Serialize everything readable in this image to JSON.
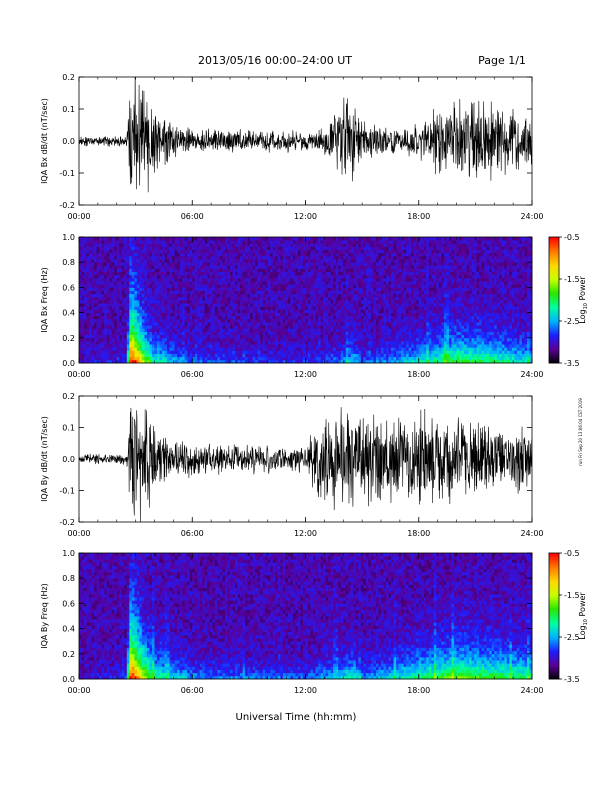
{
  "header": {
    "title": "2013/05/16  00:00–24:00 UT",
    "page": "Page 1/1"
  },
  "footer": {
    "xlabel": "Universal Time (hh:mm)"
  },
  "side_note": "run Fri Sep 20 13:06:04 CST 2019",
  "colorbar": {
    "label_base": "Log",
    "label_sub": "10",
    "label_rest": " Power",
    "ticks": [
      "-0.5",
      "-1.5",
      "-2.5",
      "-3.5"
    ],
    "range": [
      -3.5,
      -0.5
    ],
    "colors": [
      "#000000",
      "#5a0096",
      "#1e1eff",
      "#00b4ff",
      "#00ffa0",
      "#28e600",
      "#c8ff00",
      "#ffd700",
      "#ff7800",
      "#ff0000"
    ]
  },
  "chart_data": [
    {
      "type": "line",
      "ylabel": "IQA Bx dB/dt (nT/sec)",
      "xlim": [
        0,
        24
      ],
      "ylim": [
        -0.2,
        0.2
      ],
      "x_ticks": [
        "00:00",
        "06:00",
        "12:00",
        "18:00",
        "24:00"
      ],
      "y_ticks": [
        "0.2",
        "0.1",
        "0.0",
        "-0.1",
        "-0.2"
      ],
      "series": [
        {
          "envelope_hours": [
            0,
            2.5,
            2.6,
            2.75,
            3.0,
            3.5,
            4.0,
            4.5,
            5.0,
            6.0,
            7.0,
            8.0,
            9.0,
            10.0,
            11.0,
            12.0,
            13.0,
            13.5,
            14.0,
            14.5,
            15.0,
            16.0,
            17.0,
            18.0,
            18.5,
            19.0,
            20.0,
            21.0,
            22.0,
            23.0,
            24.0
          ],
          "envelope_amplitude": [
            0.015,
            0.015,
            0.06,
            0.2,
            0.2,
            0.15,
            0.12,
            0.08,
            0.05,
            0.035,
            0.035,
            0.035,
            0.03,
            0.03,
            0.03,
            0.03,
            0.04,
            0.08,
            0.15,
            0.12,
            0.06,
            0.04,
            0.04,
            0.05,
            0.08,
            0.1,
            0.12,
            0.12,
            0.1,
            0.09,
            0.08
          ]
        }
      ]
    },
    {
      "type": "heatmap",
      "ylabel": "IQA Bx Freq (Hz)",
      "xlim": [
        0,
        24
      ],
      "ylim": [
        0,
        1.0
      ],
      "x_ticks": [
        "00:00",
        "06:00",
        "12:00",
        "18:00",
        "24:00"
      ],
      "y_ticks": [
        "1.0",
        "0.8",
        "0.6",
        "0.4",
        "0.2",
        "0.0"
      ],
      "activity_hours": [
        0,
        2.5,
        2.75,
        3.0,
        3.5,
        4.0,
        5.0,
        6.0,
        12.0,
        14.0,
        14.5,
        15.0,
        18.0,
        20.0,
        22.0,
        24.0
      ],
      "activity_level": [
        0.05,
        0.1,
        1.0,
        0.85,
        0.55,
        0.35,
        0.25,
        0.15,
        0.1,
        0.2,
        0.3,
        0.15,
        0.3,
        0.45,
        0.4,
        0.3
      ]
    },
    {
      "type": "line",
      "ylabel": "IQA By dB/dt (nT/sec)",
      "xlim": [
        0,
        24
      ],
      "ylim": [
        -0.2,
        0.2
      ],
      "x_ticks": [
        "00:00",
        "06:00",
        "12:00",
        "18:00",
        "24:00"
      ],
      "y_ticks": [
        "0.2",
        "0.1",
        "0.0",
        "-0.1",
        "-0.2"
      ],
      "series": [
        {
          "envelope_hours": [
            0,
            2.5,
            2.6,
            2.75,
            3.0,
            3.5,
            4.0,
            4.5,
            5.0,
            6.0,
            7.0,
            8.0,
            9.0,
            10.0,
            11.0,
            12.0,
            12.5,
            13.0,
            14.0,
            14.5,
            15.0,
            16.0,
            17.0,
            18.0,
            19.0,
            20.0,
            21.0,
            22.0,
            23.0,
            24.0
          ],
          "envelope_amplitude": [
            0.015,
            0.015,
            0.06,
            0.2,
            0.2,
            0.18,
            0.14,
            0.08,
            0.06,
            0.05,
            0.05,
            0.04,
            0.04,
            0.04,
            0.035,
            0.04,
            0.1,
            0.13,
            0.15,
            0.16,
            0.14,
            0.12,
            0.12,
            0.15,
            0.13,
            0.12,
            0.12,
            0.11,
            0.1,
            0.09
          ]
        }
      ]
    },
    {
      "type": "heatmap",
      "ylabel": "IQA By Freq (Hz)",
      "xlim": [
        0,
        24
      ],
      "ylim": [
        0,
        1.0
      ],
      "x_ticks": [
        "00:00",
        "06:00",
        "12:00",
        "18:00",
        "24:00"
      ],
      "y_ticks": [
        "1.0",
        "0.8",
        "0.6",
        "0.4",
        "0.2",
        "0.0"
      ],
      "activity_hours": [
        0,
        2.5,
        2.75,
        3.0,
        3.5,
        4.0,
        5.0,
        6.0,
        12.0,
        14.0,
        14.5,
        15.0,
        18.0,
        20.0,
        22.0,
        24.0
      ],
      "activity_level": [
        0.05,
        0.1,
        1.0,
        0.85,
        0.6,
        0.4,
        0.3,
        0.2,
        0.15,
        0.3,
        0.35,
        0.2,
        0.4,
        0.5,
        0.45,
        0.4
      ]
    }
  ]
}
